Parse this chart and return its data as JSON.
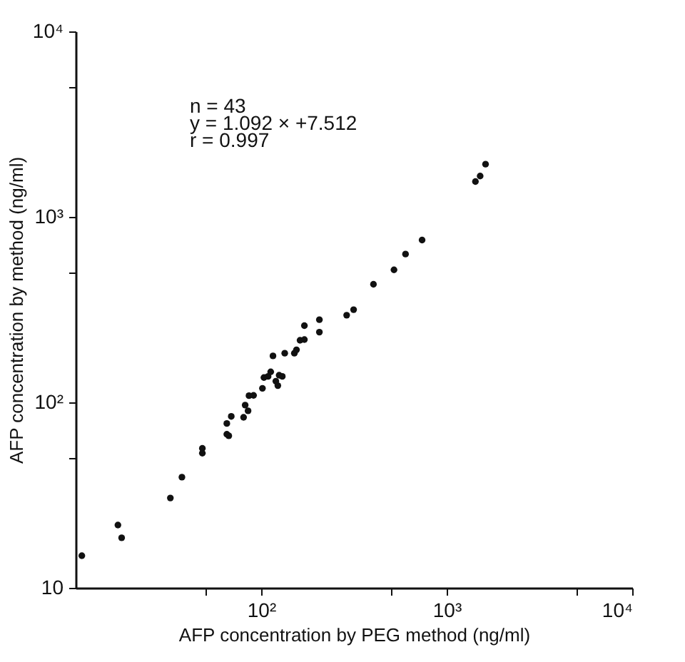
{
  "chart_data": {
    "type": "scatter",
    "xlabel": "AFP concentration by PEG method (ng/ml)",
    "ylabel": "AFP concentration by method (ng/ml)",
    "annotations": [
      "n = 43",
      "y = 1.092 × +7.512",
      "r = 0.997"
    ],
    "log": "xy",
    "grid": false,
    "marker": "circle",
    "xlim": [
      10,
      10000
    ],
    "ylim": [
      10,
      10000
    ],
    "xticks": [
      {
        "value": 50,
        "label": null
      },
      {
        "value": 100,
        "label": "10²"
      },
      {
        "value": 500,
        "label": null
      },
      {
        "value": 1000,
        "label": "10³"
      },
      {
        "value": 5000,
        "label": null
      },
      {
        "value": 10000,
        "label": "10⁴"
      }
    ],
    "yticks": [
      10,
      {
        "value": 50,
        "label": null
      },
      {
        "value": 100,
        "label": "10²"
      },
      {
        "value": 500,
        "label": null
      },
      {
        "value": 1000,
        "label": "10³"
      },
      {
        "value": 5000,
        "label": null
      },
      {
        "value": 10000,
        "label": "10⁴"
      }
    ],
    "series": [
      {
        "color": "#111111",
        "x": [
          10.8,
          16.9,
          17.7,
          32.4,
          37.4,
          48.2,
          48.2,
          65.3,
          65.3,
          66.9,
          69,
          80.4,
          82,
          85,
          86,
          91,
          101.6,
          103.5,
          109,
          112.6,
          115.8,
          123,
          120,
          125,
          134,
          130,
          151,
          155,
          162,
          171,
          171,
          206,
          206,
          289,
          315,
          403,
          520,
          600,
          737,
          1429,
          1515,
          1620
        ],
        "values": [
          14.9,
          21.8,
          18.6,
          30.5,
          39.5,
          56.5,
          53.2,
          76.9,
          67.3,
          66,
          84,
          83,
          96.6,
          90,
          108.6,
          109,
          119,
          136,
          138,
          146,
          178,
          123,
          130,
          140,
          184,
          138,
          184,
          192,
          216,
          218,
          259,
          279,
          239,
          295,
          316,
          433,
          518,
          630,
          750,
          1550,
          1660,
          1923
        ]
      }
    ]
  }
}
